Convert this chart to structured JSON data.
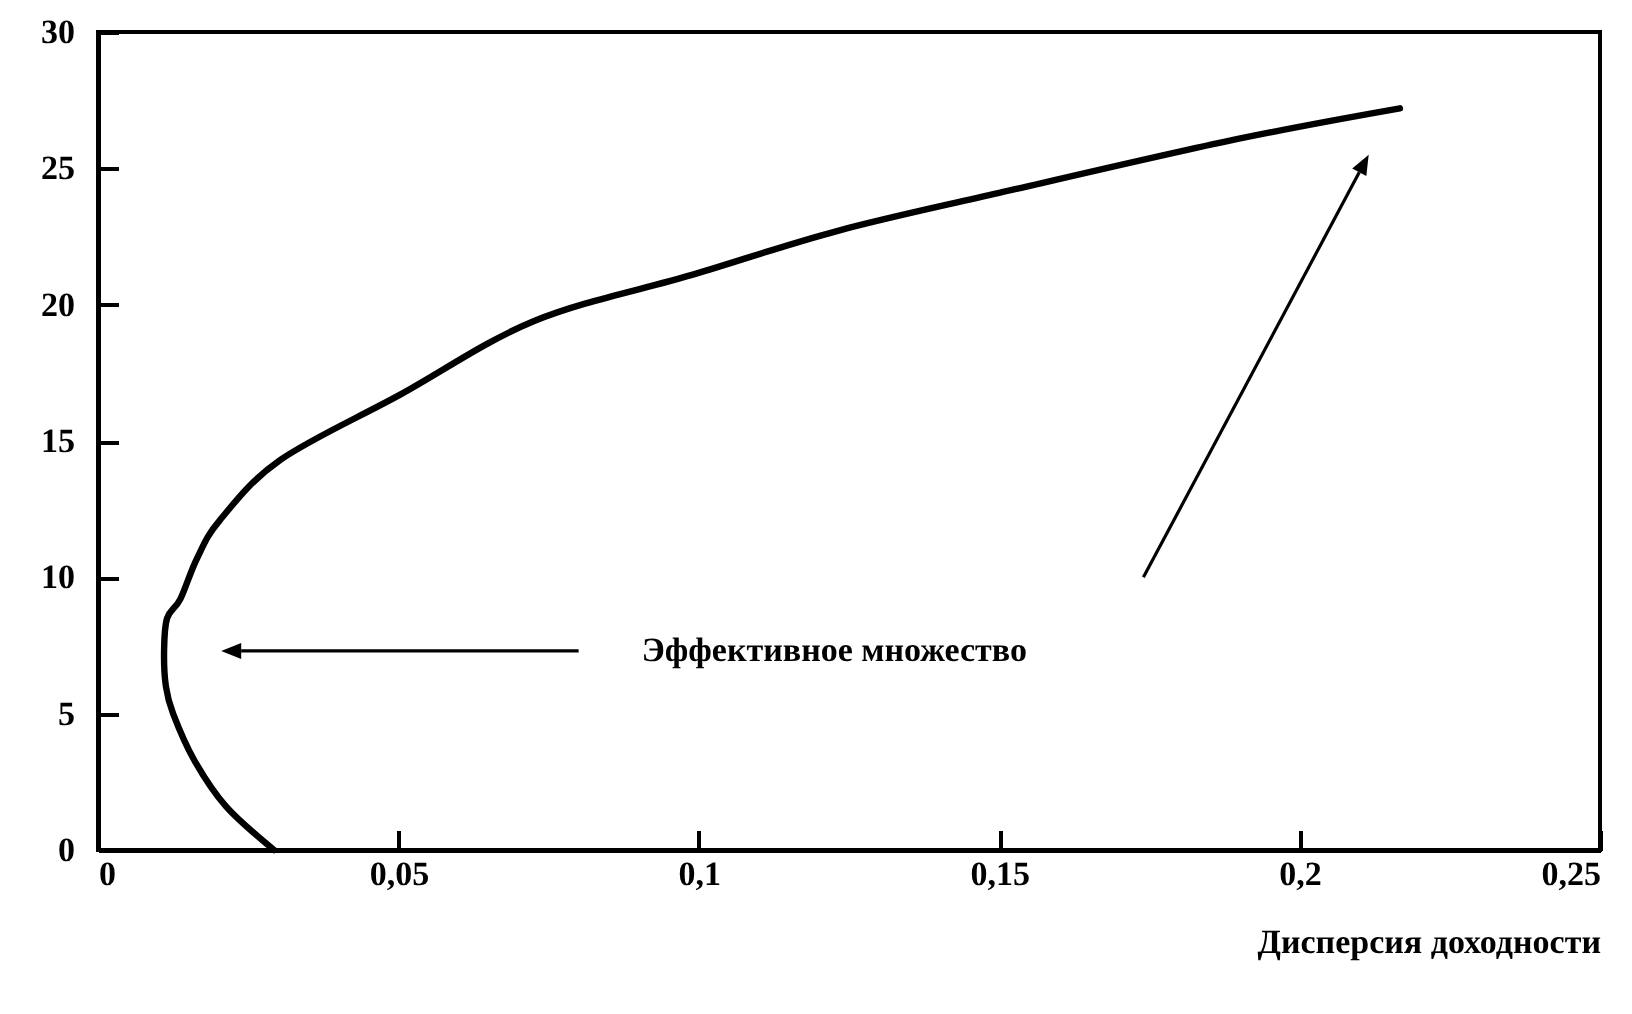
{
  "chart_data": {
    "type": "line",
    "xlabel": "Дисперсия доходности",
    "annotations": [
      "Эффективное множество"
    ],
    "x": [
      0.0293,
      0.0213,
      0.016,
      0.0125,
      0.0113,
      0.011,
      0.0115,
      0.0137,
      0.0165,
      0.0203,
      0.0303,
      0.0503,
      0.0726,
      0.099,
      0.123,
      0.15,
      0.188,
      0.2167
    ],
    "series": [
      {
        "color": "#000000",
        "values": [
          0,
          1.6,
          3.3,
          5,
          6,
          7.3,
          8.5,
          9.2,
          10.7,
          12.1,
          14.3,
          16.7,
          19.4,
          21.1,
          22.7,
          24.1,
          26.0,
          27.2
        ]
      }
    ],
    "xlim": [
      0,
      0.25
    ],
    "xticks": [
      0,
      {
        "value": 0.05,
        "label": "0,05"
      },
      {
        "value": 0.1,
        "label": "0,1"
      },
      {
        "value": 0.15,
        "label": "0,15"
      },
      {
        "value": 0.2,
        "label": "0,2"
      },
      {
        "value": 0.25,
        "label": "0,25"
      }
    ],
    "ylim": [
      0,
      30
    ],
    "yticks": [
      0,
      5,
      10,
      15,
      20,
      25,
      30
    ],
    "grid": false,
    "marker": "none",
    "line_style": "solid"
  }
}
